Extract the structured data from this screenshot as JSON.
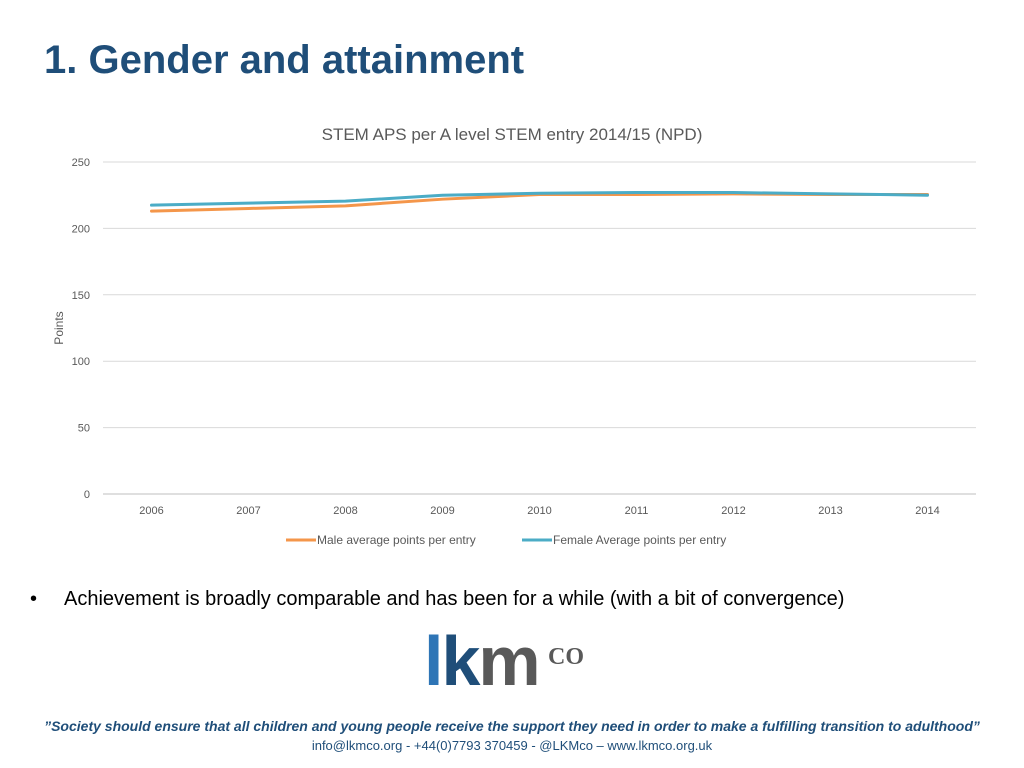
{
  "slide": {
    "title": "1. Gender and attainment",
    "bullet_marker": "•",
    "bullet_text": "Achievement is broadly comparable and has been for a while (with a bit of convergence)",
    "quote": "”Society should ensure that all children and young people receive the support they need in order to make a fulfilling transition to adulthood”",
    "contact": "info@lkmco.org - +44(0)7793 370459 - @LKMco – www.lkmco.org.uk"
  },
  "logo": {
    "text": "lkmco",
    "colors": {
      "l": "#2e75b6",
      "k": "#1f4e79",
      "m": "#595959"
    }
  },
  "chart_data": {
    "type": "line",
    "title": "STEM APS per A level STEM entry 2014/15 (NPD)",
    "xlabel": "",
    "ylabel": "Points",
    "ylim": [
      0,
      250
    ],
    "yticks": [
      0,
      50,
      100,
      150,
      200,
      250
    ],
    "grid": true,
    "legend_position": "bottom",
    "x": [
      "2006",
      "2007",
      "2008",
      "2009",
      "2010",
      "2011",
      "2012",
      "2013",
      "2014"
    ],
    "series": [
      {
        "name": "Male average points per entry",
        "color": "#f4964a",
        "values": [
          213,
          215,
          217,
          222,
          225.5,
          225.5,
          226,
          225.5,
          225.5
        ]
      },
      {
        "name": "Female Average points per entry",
        "color": "#4bacc6",
        "values": [
          217.5,
          219,
          220.5,
          225,
          226.5,
          227,
          227,
          226,
          225
        ]
      }
    ]
  }
}
